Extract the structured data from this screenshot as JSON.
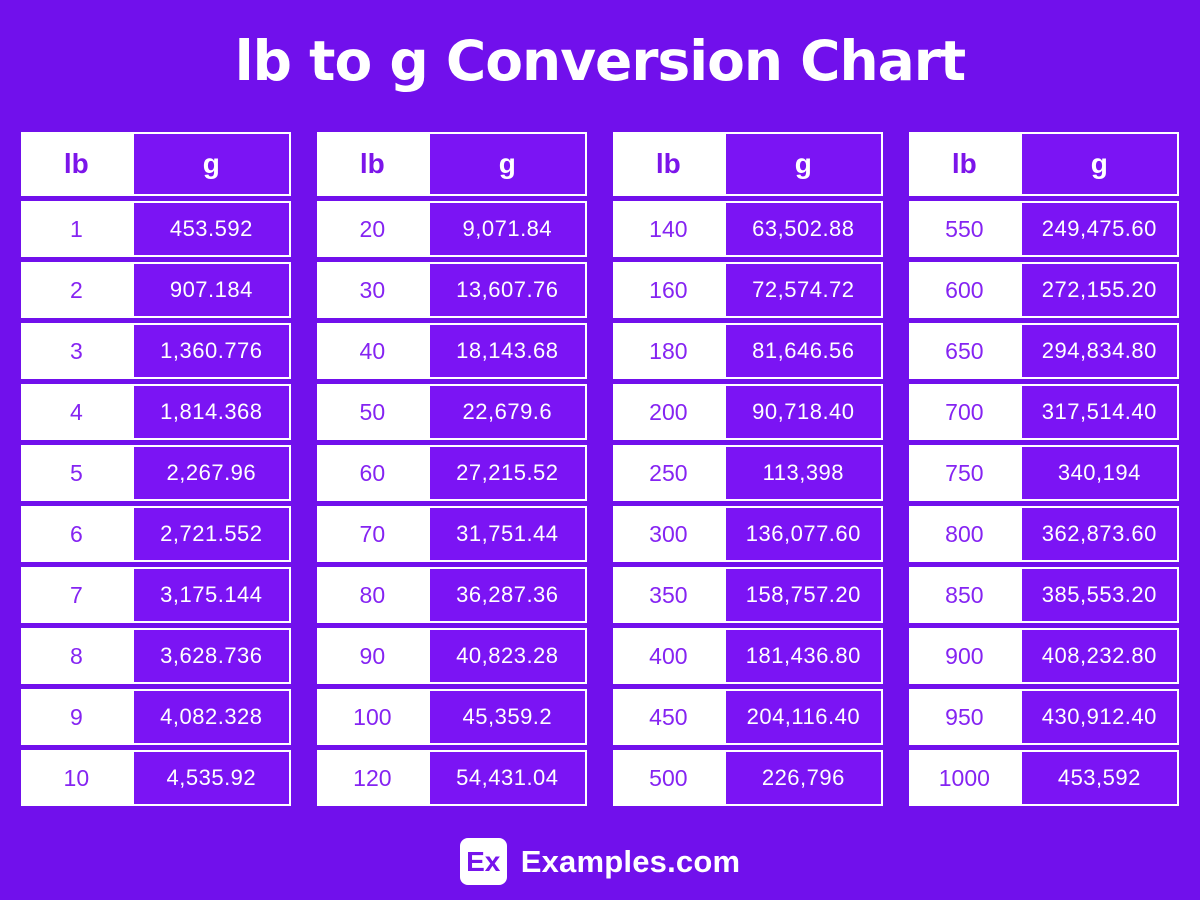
{
  "title": "lb to g Conversion Chart",
  "colors": {
    "background": "#7110EC",
    "cell_purple": "#7B14F4",
    "lb_text_purple": "#8524F2",
    "header_text_purple": "#7C15EA",
    "white": "#FFFFFF"
  },
  "brand": {
    "logo_text": "Ex",
    "name": "Examples.com"
  },
  "chart_data": {
    "type": "table",
    "title": "lb to g Conversion Chart",
    "columns": [
      "lb",
      "g"
    ],
    "tables": [
      {
        "rows": [
          {
            "lb": "1",
            "g": "453.592"
          },
          {
            "lb": "2",
            "g": "907.184"
          },
          {
            "lb": "3",
            "g": "1,360.776"
          },
          {
            "lb": "4",
            "g": "1,814.368"
          },
          {
            "lb": "5",
            "g": "2,267.96"
          },
          {
            "lb": "6",
            "g": "2,721.552"
          },
          {
            "lb": "7",
            "g": "3,175.144"
          },
          {
            "lb": "8",
            "g": "3,628.736"
          },
          {
            "lb": "9",
            "g": "4,082.328"
          },
          {
            "lb": "10",
            "g": "4,535.92"
          }
        ]
      },
      {
        "rows": [
          {
            "lb": "20",
            "g": "9,071.84"
          },
          {
            "lb": "30",
            "g": "13,607.76"
          },
          {
            "lb": "40",
            "g": "18,143.68"
          },
          {
            "lb": "50",
            "g": "22,679.6"
          },
          {
            "lb": "60",
            "g": "27,215.52"
          },
          {
            "lb": "70",
            "g": "31,751.44"
          },
          {
            "lb": "80",
            "g": "36,287.36"
          },
          {
            "lb": "90",
            "g": "40,823.28"
          },
          {
            "lb": "100",
            "g": "45,359.2"
          },
          {
            "lb": "120",
            "g": "54,431.04"
          }
        ]
      },
      {
        "rows": [
          {
            "lb": "140",
            "g": "63,502.88"
          },
          {
            "lb": "160",
            "g": "72,574.72"
          },
          {
            "lb": "180",
            "g": "81,646.56"
          },
          {
            "lb": "200",
            "g": "90,718.40"
          },
          {
            "lb": "250",
            "g": "113,398"
          },
          {
            "lb": "300",
            "g": "136,077.60"
          },
          {
            "lb": "350",
            "g": "158,757.20"
          },
          {
            "lb": "400",
            "g": "181,436.80"
          },
          {
            "lb": "450",
            "g": "204,116.40"
          },
          {
            "lb": "500",
            "g": "226,796"
          }
        ]
      },
      {
        "rows": [
          {
            "lb": "550",
            "g": "249,475.60"
          },
          {
            "lb": "600",
            "g": "272,155.20"
          },
          {
            "lb": "650",
            "g": "294,834.80"
          },
          {
            "lb": "700",
            "g": "317,514.40"
          },
          {
            "lb": "750",
            "g": "340,194"
          },
          {
            "lb": "800",
            "g": "362,873.60"
          },
          {
            "lb": "850",
            "g": "385,553.20"
          },
          {
            "lb": "900",
            "g": "408,232.80"
          },
          {
            "lb": "950",
            "g": "430,912.40"
          },
          {
            "lb": "1000",
            "g": "453,592"
          }
        ]
      }
    ]
  }
}
